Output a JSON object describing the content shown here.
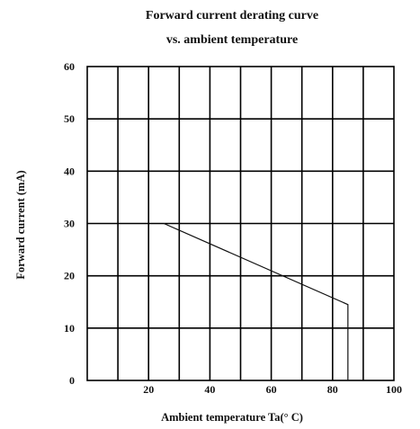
{
  "chart_data": {
    "type": "line",
    "title": "Forward current derating curve",
    "subtitle": "vs. ambient temperature",
    "xlabel": "Ambient temperature Ta(° C)",
    "ylabel": "Forward current (mA)",
    "xlim": [
      0,
      100
    ],
    "ylim": [
      0,
      60
    ],
    "x_ticks": [
      20,
      40,
      60,
      80,
      100
    ],
    "y_ticks": [
      0,
      10,
      20,
      30,
      40,
      50,
      60
    ],
    "grid": true,
    "series": [
      {
        "x": [
          25,
          85,
          85
        ],
        "y": [
          30,
          14.5,
          0
        ]
      }
    ]
  }
}
